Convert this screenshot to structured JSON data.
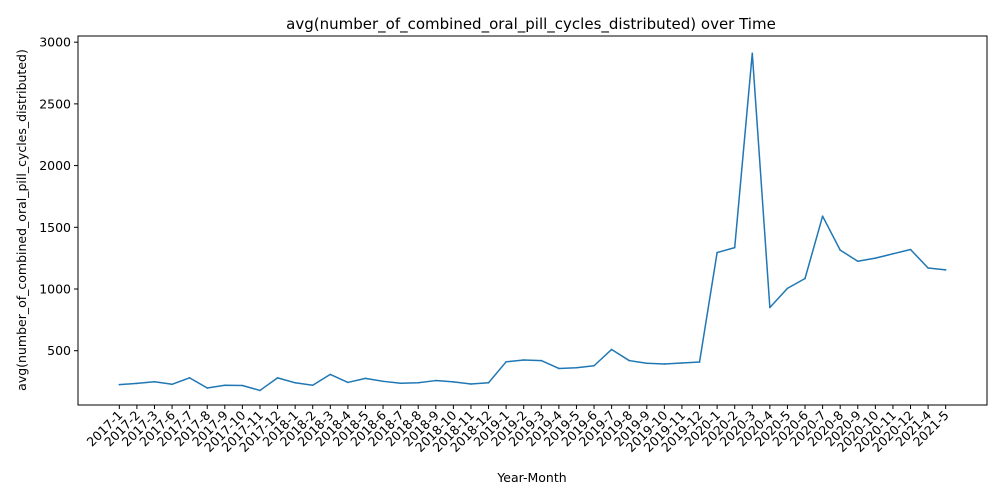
{
  "chart_data": {
    "type": "line",
    "title": "avg(number_of_combined_oral_pill_cycles_distributed) over Time",
    "xlabel": "Year-Month",
    "ylabel": "avg(number_of_combined_oral_pill_cycles_distributed)",
    "ylim": [
      60,
      3050
    ],
    "yticks": [
      500,
      1000,
      1500,
      2000,
      2500,
      3000
    ],
    "ytick_labels": [
      "500",
      "1000",
      "1500",
      "2000",
      "2500",
      "3000"
    ],
    "grid": false,
    "legend": "none",
    "line_color": "#1f77b4",
    "x": [
      "2017-1",
      "2017-2",
      "2017-3",
      "2017-6",
      "2017-7",
      "2017-8",
      "2017-9",
      "2017-10",
      "2017-11",
      "2017-12",
      "2018-1",
      "2018-2",
      "2018-3",
      "2018-4",
      "2018-5",
      "2018-6",
      "2018-7",
      "2018-8",
      "2018-9",
      "2018-10",
      "2018-11",
      "2018-12",
      "2019-1",
      "2019-2",
      "2019-3",
      "2019-4",
      "2019-5",
      "2019-6",
      "2019-7",
      "2019-8",
      "2019-9",
      "2019-10",
      "2019-11",
      "2019-12",
      "2020-1",
      "2020-2",
      "2020-3",
      "2020-4",
      "2020-5",
      "2020-6",
      "2020-7",
      "2020-8",
      "2020-9",
      "2020-10",
      "2020-11",
      "2020-12",
      "2021-4",
      "2021-5"
    ],
    "series": [
      {
        "values": [
          225,
          235,
          248,
          228,
          280,
          198,
          220,
          218,
          178,
          280,
          240,
          220,
          308,
          243,
          276,
          252,
          236,
          240,
          258,
          247,
          230,
          240,
          410,
          425,
          420,
          356,
          362,
          378,
          510,
          420,
          398,
          392,
          400,
          408,
          1295,
          1335,
          2910,
          850,
          1005,
          1085,
          1590,
          1315,
          1225,
          1250,
          1285,
          1320,
          1170,
          1155
        ]
      }
    ]
  }
}
